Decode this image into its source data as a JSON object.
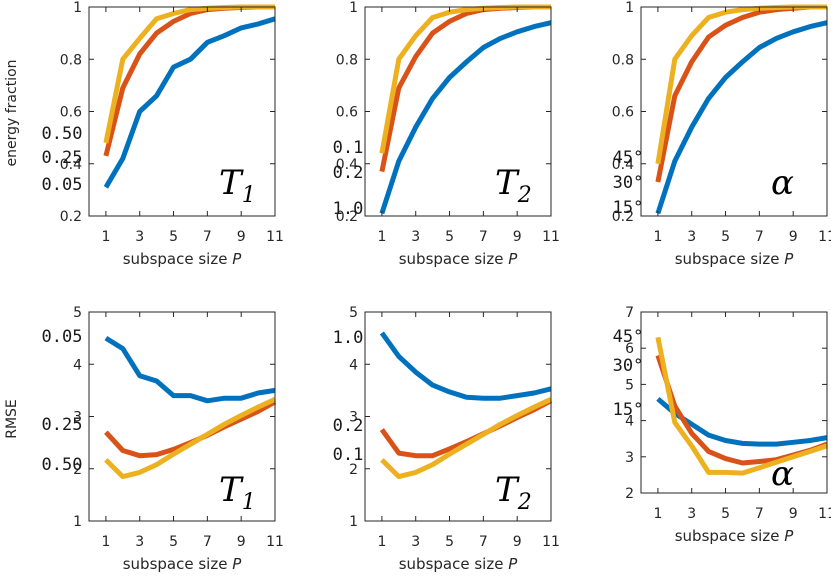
{
  "figure": {
    "ylabel_row1": "energy fraction",
    "ylabel_row2": "RMSE"
  },
  "colors": {
    "blue": "#0072bd",
    "orange": "#d95319",
    "yellow": "#edb120"
  },
  "chart_data": [
    {
      "type": "line",
      "title": "",
      "xlabel": "subspace size",
      "xlabel_var": "P",
      "ylabel": "energy fraction",
      "xlim": [
        0,
        11
      ],
      "ylim": [
        0.2,
        1
      ],
      "xticks": [
        1,
        3,
        5,
        7,
        9,
        11
      ],
      "yticks": [
        0.2,
        0.4,
        0.6,
        0.8,
        1
      ],
      "ytick_labels": [
        "0.2",
        "0.4",
        "0.6",
        "0.8",
        "1"
      ],
      "annotation": {
        "main": "T",
        "sub": "1"
      },
      "x": [
        1,
        2,
        3,
        4,
        5,
        6,
        7,
        8,
        9,
        10,
        11
      ],
      "series": [
        {
          "name": "0.05",
          "color": "blue",
          "values": [
            0.31,
            0.42,
            0.6,
            0.66,
            0.77,
            0.8,
            0.865,
            0.89,
            0.92,
            0.935,
            0.955
          ]
        },
        {
          "name": "0.25",
          "color": "orange",
          "values": [
            0.43,
            0.69,
            0.82,
            0.9,
            0.945,
            0.975,
            0.99,
            0.995,
            0.998,
            1.0,
            1.0
          ]
        },
        {
          "name": "0.50",
          "color": "yellow",
          "values": [
            0.48,
            0.8,
            0.88,
            0.955,
            0.975,
            0.99,
            0.995,
            0.998,
            1.0,
            1.0,
            1.0
          ]
        }
      ]
    },
    {
      "type": "line",
      "title": "",
      "xlabel": "subspace size",
      "xlabel_var": "P",
      "ylabel": "",
      "xlim": [
        0,
        11
      ],
      "ylim": [
        0.2,
        1
      ],
      "xticks": [
        1,
        3,
        5,
        7,
        9,
        11
      ],
      "yticks": [
        0.2,
        0.4,
        0.6,
        0.8,
        1
      ],
      "ytick_labels": [
        "0.2",
        "0.4",
        "0.6",
        "0.8",
        "1"
      ],
      "annotation": {
        "main": "T",
        "sub": "2"
      },
      "x": [
        1,
        2,
        3,
        4,
        5,
        6,
        7,
        8,
        9,
        10,
        11
      ],
      "series": [
        {
          "name": "1.0",
          "color": "blue",
          "values": [
            0.21,
            0.41,
            0.54,
            0.65,
            0.73,
            0.79,
            0.845,
            0.88,
            0.905,
            0.925,
            0.94
          ]
        },
        {
          "name": "0.2",
          "color": "orange",
          "values": [
            0.37,
            0.69,
            0.81,
            0.9,
            0.945,
            0.975,
            0.99,
            0.995,
            0.998,
            1.0,
            1.0
          ]
        },
        {
          "name": "0.1",
          "color": "yellow",
          "values": [
            0.44,
            0.8,
            0.89,
            0.96,
            0.98,
            0.99,
            0.995,
            0.998,
            1.0,
            1.0,
            1.0
          ]
        }
      ]
    },
    {
      "type": "line",
      "title": "",
      "xlabel": "subspace size",
      "xlabel_var": "P",
      "ylabel": "",
      "xlim": [
        0,
        11
      ],
      "ylim": [
        0.2,
        1
      ],
      "xticks": [
        1,
        3,
        5,
        7,
        9,
        11
      ],
      "yticks": [
        0.2,
        0.4,
        0.6,
        0.8,
        1
      ],
      "ytick_labels": [
        "0.2",
        "0.4",
        "0.6",
        "0.8",
        "1"
      ],
      "annotation": {
        "main": "α",
        "sub": ""
      },
      "x": [
        1,
        2,
        3,
        4,
        5,
        6,
        7,
        8,
        9,
        10,
        11
      ],
      "series": [
        {
          "name": "15°",
          "color": "blue",
          "values": [
            0.21,
            0.41,
            0.54,
            0.65,
            0.73,
            0.79,
            0.845,
            0.88,
            0.905,
            0.925,
            0.94
          ]
        },
        {
          "name": "30°",
          "color": "orange",
          "values": [
            0.33,
            0.66,
            0.79,
            0.885,
            0.93,
            0.96,
            0.98,
            0.99,
            0.995,
            1.0,
            1.0
          ]
        },
        {
          "name": "45°",
          "color": "yellow",
          "values": [
            0.4,
            0.8,
            0.89,
            0.96,
            0.98,
            0.99,
            0.995,
            0.998,
            1.0,
            1.0,
            1.0
          ]
        }
      ]
    },
    {
      "type": "line",
      "title": "",
      "xlabel": "subspace size",
      "xlabel_var": "P",
      "ylabel": "RMSE",
      "xlim": [
        0,
        11
      ],
      "ylim": [
        1,
        5
      ],
      "xticks": [
        1,
        3,
        5,
        7,
        9,
        11
      ],
      "yticks": [
        1,
        2,
        3,
        4,
        5
      ],
      "ytick_labels": [
        "1",
        "2",
        "3",
        "4",
        "5"
      ],
      "annotation": {
        "main": "T",
        "sub": "1"
      },
      "x": [
        1,
        2,
        3,
        4,
        5,
        6,
        7,
        8,
        9,
        10,
        11
      ],
      "series": [
        {
          "name": "0.05",
          "color": "blue",
          "values": [
            4.5,
            4.3,
            3.78,
            3.68,
            3.4,
            3.4,
            3.3,
            3.35,
            3.35,
            3.45,
            3.5
          ]
        },
        {
          "name": "0.25",
          "color": "orange",
          "values": [
            2.7,
            2.35,
            2.25,
            2.27,
            2.37,
            2.5,
            2.64,
            2.8,
            2.95,
            3.1,
            3.28
          ]
        },
        {
          "name": "0.50",
          "color": "yellow",
          "values": [
            2.17,
            1.85,
            1.93,
            2.08,
            2.28,
            2.47,
            2.66,
            2.85,
            3.02,
            3.18,
            3.33
          ]
        }
      ]
    },
    {
      "type": "line",
      "title": "",
      "xlabel": "subspace size",
      "xlabel_var": "P",
      "ylabel": "",
      "xlim": [
        0,
        11
      ],
      "ylim": [
        1,
        5
      ],
      "xticks": [
        1,
        3,
        5,
        7,
        9,
        11
      ],
      "yticks": [
        1,
        2,
        3,
        4,
        5
      ],
      "ytick_labels": [
        "1",
        "2",
        "3",
        "4",
        "5"
      ],
      "annotation": {
        "main": "T",
        "sub": "2"
      },
      "x": [
        1,
        2,
        3,
        4,
        5,
        6,
        7,
        8,
        9,
        10,
        11
      ],
      "series": [
        {
          "name": "1.0",
          "color": "blue",
          "values": [
            4.6,
            4.15,
            3.85,
            3.6,
            3.47,
            3.37,
            3.35,
            3.35,
            3.4,
            3.45,
            3.53
          ]
        },
        {
          "name": "0.2",
          "color": "orange",
          "values": [
            2.75,
            2.3,
            2.25,
            2.25,
            2.38,
            2.52,
            2.67,
            2.82,
            2.98,
            3.13,
            3.3
          ]
        },
        {
          "name": "0.1",
          "color": "yellow",
          "values": [
            2.17,
            1.85,
            1.93,
            2.08,
            2.28,
            2.47,
            2.66,
            2.85,
            3.02,
            3.18,
            3.33
          ]
        }
      ]
    },
    {
      "type": "line",
      "title": "",
      "xlabel": "subspace size",
      "xlabel_var": "P",
      "ylabel": "",
      "xlim": [
        0,
        11
      ],
      "ylim": [
        2,
        7
      ],
      "xticks": [
        1,
        3,
        5,
        7,
        9,
        11
      ],
      "yticks": [
        2,
        3,
        4,
        5,
        6,
        7
      ],
      "ytick_labels": [
        "2",
        "3",
        "4",
        "5",
        "6",
        "7"
      ],
      "annotation": {
        "main": "α",
        "sub": ""
      },
      "x": [
        1,
        2,
        3,
        4,
        5,
        6,
        7,
        8,
        9,
        10,
        11
      ],
      "series": [
        {
          "name": "15°",
          "color": "blue",
          "values": [
            4.6,
            4.2,
            3.9,
            3.6,
            3.45,
            3.37,
            3.35,
            3.35,
            3.4,
            3.45,
            3.53
          ]
        },
        {
          "name": "30°",
          "color": "orange",
          "values": [
            5.8,
            4.4,
            3.65,
            3.15,
            2.95,
            2.83,
            2.87,
            2.92,
            3.05,
            3.18,
            3.35
          ]
        },
        {
          "name": "45°",
          "color": "yellow",
          "values": [
            6.3,
            3.95,
            3.3,
            2.57,
            2.57,
            2.55,
            2.7,
            2.85,
            3.0,
            3.15,
            3.3
          ]
        }
      ]
    }
  ]
}
